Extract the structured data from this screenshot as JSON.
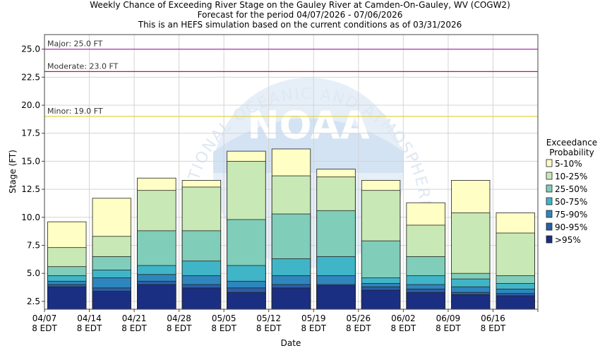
{
  "chart_data": {
    "type": "bar",
    "title_lines": [
      "Weekly Chance of Exceeding River Stage on the Gauley River at Camden-On-Gauley, WV (COGW2)",
      "Forecast for the period 04/07/2026 - 07/06/2026",
      "This is an HEFS simulation based on the current conditions as of 03/31/2026"
    ],
    "xlabel": "Date",
    "ylabel": "Stage (FT)",
    "ylim": [
      1.8,
      26.3
    ],
    "yticks": [
      2.5,
      5.0,
      7.5,
      10.0,
      12.5,
      15.0,
      17.5,
      20.0,
      22.5,
      25.0
    ],
    "ytick_labels": [
      "2.5",
      "5.0",
      "7.5",
      "10.0",
      "12.5",
      "15.0",
      "17.5",
      "20.0",
      "22.5",
      "25.0"
    ],
    "xtick_dates": [
      "04/07",
      "04/14",
      "04/21",
      "04/28",
      "05/05",
      "05/12",
      "05/19",
      "05/26",
      "06/02",
      "06/09",
      "06/16"
    ],
    "xtick_sub": "8 EDT",
    "legend": {
      "title_lines": [
        "Exceedance",
        "Probability"
      ],
      "placement": "right"
    },
    "categories": [
      "04/07",
      "04/14",
      "04/21",
      "04/28",
      "05/05",
      "05/12",
      "05/19",
      "05/26",
      "06/02",
      "06/09",
      "06/16"
    ],
    "series": [
      {
        "name": ">95%",
        "color": "#1a2f82",
        "values": [
          3.8,
          3.4,
          4.0,
          3.7,
          3.3,
          3.7,
          3.9,
          3.5,
          3.3,
          3.1,
          3.0
        ]
      },
      {
        "name": "90-95%",
        "color": "#2b5fa6",
        "values": [
          4.0,
          3.7,
          4.3,
          4.0,
          3.7,
          4.0,
          4.0,
          3.8,
          3.6,
          3.3,
          3.2
        ]
      },
      {
        "name": "75-90%",
        "color": "#2f86bd",
        "values": [
          4.3,
          4.6,
          4.9,
          4.8,
          4.3,
          4.8,
          4.8,
          4.1,
          4.0,
          3.8,
          3.6
        ]
      },
      {
        "name": "50-75%",
        "color": "#41b5c8",
        "values": [
          4.8,
          5.3,
          5.7,
          6.1,
          5.7,
          6.3,
          6.5,
          4.6,
          4.8,
          4.5,
          4.1
        ]
      },
      {
        "name": "25-50%",
        "color": "#80cdb9",
        "values": [
          5.6,
          6.5,
          8.8,
          8.8,
          9.8,
          10.3,
          10.6,
          7.9,
          6.5,
          5.0,
          4.8
        ]
      },
      {
        "name": "10-25%",
        "color": "#c8e9b5",
        "values": [
          7.3,
          8.3,
          12.4,
          12.7,
          15.0,
          13.7,
          13.6,
          12.4,
          9.3,
          10.4,
          8.6
        ]
      },
      {
        "name": "5-10%",
        "color": "#fffec4",
        "values": [
          9.6,
          11.7,
          13.5,
          13.3,
          15.9,
          16.1,
          14.3,
          13.3,
          11.3,
          13.3,
          10.4
        ]
      }
    ],
    "thresholds": [
      {
        "label": "Major: 25.0 FT",
        "value": 25.0,
        "color": "#b030b0"
      },
      {
        "label": "Moderate: 23.0 FT",
        "value": 23.0,
        "color": "#c8143c"
      },
      {
        "label": "Minor: 19.0 FT",
        "value": 19.0,
        "color": "#e3d24a"
      }
    ],
    "grid": true,
    "watermark_text": "NATIONAL OCEANIC AND ATMOSPHERIC ADMINISTRATION",
    "watermark_logo_text": "NOAA"
  }
}
